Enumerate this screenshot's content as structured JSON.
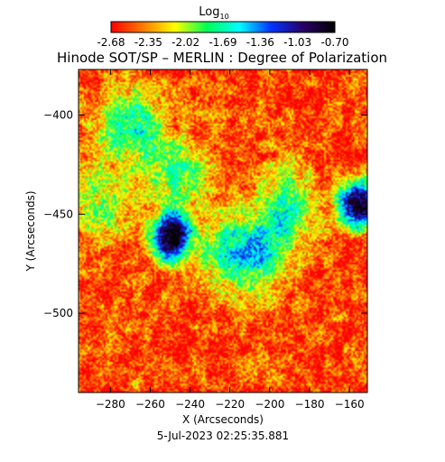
{
  "chart_data": {
    "type": "heatmap",
    "title": "Hinode SOT/SP – MERLIN : Degree of Polarization",
    "colorbar": {
      "label_base": "Log",
      "label_sub": "10",
      "ticks": [
        "-2.68",
        "-2.35",
        "-2.02",
        "-1.69",
        "-1.36",
        "-1.03",
        "-0.70"
      ],
      "range": [
        -2.68,
        -0.7
      ],
      "colors": [
        "#ff0000",
        "#ff7a00",
        "#ffff00",
        "#00ff55",
        "#00ffff",
        "#0033ff",
        "#2a0066",
        "#000000"
      ]
    },
    "xlabel": "X (Arcseconds)",
    "ylabel": "Y (Arcseconds)",
    "xlim": [
      -296,
      -151
    ],
    "ylim": [
      -540,
      -377
    ],
    "xticks": [
      -280,
      -260,
      -240,
      -220,
      -200,
      -180,
      -160
    ],
    "yticks": [
      -400,
      -450,
      -500
    ],
    "footer": "5-Jul-2023 02:25:35.881",
    "features": [
      {
        "kind": "spot",
        "x": -250,
        "y": -462,
        "strength": 1.0
      },
      {
        "kind": "spot",
        "x": -155,
        "y": -445,
        "strength": 1.0
      },
      {
        "kind": "plage",
        "x": -270,
        "y": -405,
        "strength": 0.45
      },
      {
        "kind": "plage",
        "x": -245,
        "y": -430,
        "strength": 0.35
      },
      {
        "kind": "plage",
        "x": -205,
        "y": -470,
        "strength": 0.45
      },
      {
        "kind": "plage",
        "x": -190,
        "y": -445,
        "strength": 0.35
      },
      {
        "kind": "plage",
        "x": -225,
        "y": -470,
        "strength": 0.3
      },
      {
        "kind": "plage",
        "x": -285,
        "y": -445,
        "strength": 0.3
      }
    ]
  }
}
